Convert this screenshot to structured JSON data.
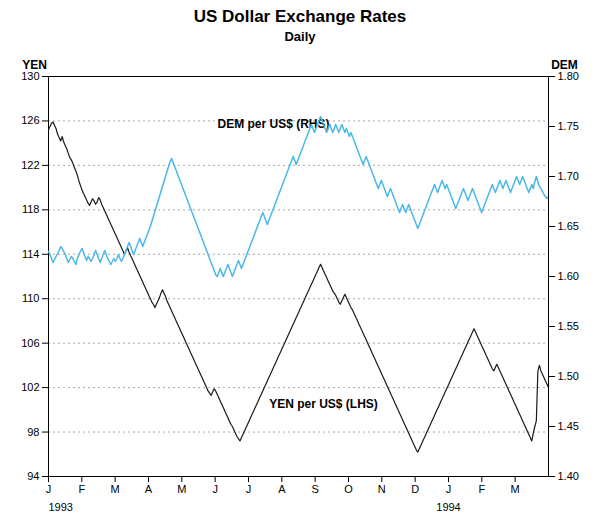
{
  "chart_data": {
    "type": "line",
    "title": "US Dollar Exchange Rates",
    "subtitle": "Daily",
    "ylabel": "YEN",
    "y2label": "DEM",
    "grid": true,
    "xlim": [
      0,
      15
    ],
    "xticks": [
      {
        "value": 0,
        "label": "J"
      },
      {
        "value": 1,
        "label": "F"
      },
      {
        "value": 2,
        "label": "M"
      },
      {
        "value": 3,
        "label": "A"
      },
      {
        "value": 4,
        "label": "M"
      },
      {
        "value": 5,
        "label": "J"
      },
      {
        "value": 6,
        "label": "J"
      },
      {
        "value": 7,
        "label": "A"
      },
      {
        "value": 8,
        "label": "S"
      },
      {
        "value": 9,
        "label": "O"
      },
      {
        "value": 10,
        "label": "N"
      },
      {
        "value": 11,
        "label": "D"
      },
      {
        "value": 12,
        "label": "J"
      },
      {
        "value": 13,
        "label": "F"
      },
      {
        "value": 14,
        "label": "M"
      }
    ],
    "x_year_labels": [
      {
        "value": 0,
        "label": "1993"
      },
      {
        "value": 12,
        "label": "1994"
      }
    ],
    "ylim": [
      94,
      130
    ],
    "yticks": [
      94,
      98,
      102,
      106,
      110,
      114,
      118,
      122,
      126,
      130
    ],
    "y2lim": [
      1.4,
      1.8
    ],
    "y2ticks": [
      {
        "value": 1.4,
        "label": "1.40"
      },
      1.45,
      {
        "value": 1.5,
        "label": "1.50"
      },
      1.55,
      {
        "value": 1.6,
        "label": "1.60"
      },
      1.65,
      {
        "value": 1.7,
        "label": "1.70"
      },
      1.75,
      {
        "value": 1.8,
        "label": "1.80"
      }
    ],
    "annotations": [
      {
        "text": "DEM per US$ (RHS)"
      },
      {
        "text": "YEN per US$ (LHS)"
      }
    ],
    "x": [
      0,
      0.0456,
      0.0912,
      0.1368,
      0.1824,
      0.228,
      0.2736,
      0.3191,
      0.3647,
      0.4103,
      0.4559,
      0.5015,
      0.5471,
      0.5927,
      0.6383,
      0.6839,
      0.7295,
      0.7751,
      0.8207,
      0.8663,
      0.9119,
      0.9574,
      1.003,
      1.0486,
      1.0942,
      1.1398,
      1.1854,
      1.231,
      1.2766,
      1.3222,
      1.3678,
      1.4134,
      1.459,
      1.5046,
      1.5502,
      1.5957,
      1.6413,
      1.6869,
      1.7325,
      1.7781,
      1.8237,
      1.8693,
      1.9149,
      1.9605,
      2.0061,
      2.0517,
      2.0973,
      2.1429,
      2.1884,
      2.234,
      2.2796,
      2.3252,
      2.3708,
      2.4164,
      2.462,
      2.5076,
      2.5532,
      2.5988,
      2.6444,
      2.69,
      2.7356,
      2.7812,
      2.8267,
      2.8723,
      2.9179,
      2.9635,
      3.0091,
      3.0547,
      3.1003,
      3.1459,
      3.1915,
      3.2371,
      3.2827,
      3.3283,
      3.3739,
      3.4195,
      3.465,
      3.5106,
      3.5562,
      3.6018,
      3.6474,
      3.693,
      3.7386,
      3.7842,
      3.8298,
      3.8754,
      3.921,
      3.9666,
      4.0122,
      4.0578,
      4.1033,
      4.1489,
      4.1945,
      4.2401,
      4.2857,
      4.3313,
      4.3769,
      4.4225,
      4.4681,
      4.5137,
      4.5593,
      4.6049,
      4.6505,
      4.696,
      4.7416,
      4.7872,
      4.8328,
      4.8784,
      4.924,
      4.9696,
      5.0152,
      5.0608,
      5.1064,
      5.152,
      5.1976,
      5.2432,
      5.2888,
      5.3343,
      5.3799,
      5.4255,
      5.4711,
      5.5167,
      5.5623,
      5.6079,
      5.6535,
      5.6991,
      5.7447,
      5.7903,
      5.8359,
      5.8815,
      5.9271,
      5.9726,
      6.0182,
      6.0638,
      6.1094,
      6.155,
      6.2006,
      6.2462,
      6.2918,
      6.3374,
      6.383,
      6.4286,
      6.4742,
      6.5198,
      6.5653,
      6.6109,
      6.6565,
      6.7021,
      6.7477,
      6.7933,
      6.8389,
      6.8845,
      6.9301,
      6.9757,
      7.0213,
      7.0669,
      7.1125,
      7.1581,
      7.2036,
      7.2492,
      7.2948,
      7.3404,
      7.386,
      7.4316,
      7.4772,
      7.5228,
      7.5684,
      7.614,
      7.6596,
      7.7052,
      7.7508,
      7.7964,
      7.8419,
      7.8875,
      7.9331,
      7.9787,
      8.0243,
      8.0699,
      8.1155,
      8.1611,
      8.2067,
      8.2523,
      8.2979,
      8.3435,
      8.3891,
      8.4347,
      8.4802,
      8.5258,
      8.5714,
      8.617,
      8.6626,
      8.7082,
      8.7538,
      8.7994,
      8.845,
      8.8906,
      8.9362,
      8.9818,
      9.0274,
      9.0729,
      9.1185,
      9.1641,
      9.2097,
      9.2553,
      9.3009,
      9.3465,
      9.3921,
      9.4377,
      9.4833,
      9.5289,
      9.5745,
      9.6201,
      9.6657,
      9.7112,
      9.7568,
      9.8024,
      9.848,
      9.8936,
      9.9392,
      9.9848,
      10.0304,
      10.076,
      10.1216,
      10.1672,
      10.2128,
      10.2584,
      10.304,
      10.3495,
      10.3951,
      10.4407,
      10.4863,
      10.5319,
      10.5775,
      10.6231,
      10.6687,
      10.7143,
      10.7599,
      10.8055,
      10.8511,
      10.8967,
      10.9422,
      10.9878,
      11.0334,
      11.079,
      11.1246,
      11.1702,
      11.2158,
      11.2614,
      11.307,
      11.3526,
      11.3982,
      11.4438,
      11.4894,
      11.535,
      11.5805,
      11.6261,
      11.6717,
      11.7173,
      11.7629,
      11.8085,
      11.8541,
      11.8997,
      11.9453,
      11.9909,
      12.0365,
      12.0821,
      12.1277,
      12.1733,
      12.2188,
      12.2644,
      12.31,
      12.3556,
      12.4012,
      12.4468,
      12.4924,
      12.538,
      12.5836,
      12.6292,
      12.6748,
      12.7204,
      12.766,
      12.8116,
      12.8571,
      12.9027,
      12.9483,
      12.9939,
      13.0395,
      13.0851,
      13.1307,
      13.1763,
      13.2219,
      13.2675,
      13.3131,
      13.3587,
      13.4043,
      13.4498,
      13.4954,
      13.541,
      13.5866,
      13.6322,
      13.6778,
      13.7234,
      13.769,
      13.8146,
      13.8602,
      13.9058,
      13.9514,
      13.997,
      14.0426,
      14.0881,
      14.1337,
      14.1793,
      14.2249,
      14.2705,
      14.3161,
      14.3617,
      14.4073,
      14.4529,
      14.4985,
      14.5441,
      14.5897,
      14.6353,
      14.6809,
      14.7264,
      14.772,
      14.8176,
      14.8632,
      14.9088,
      14.9544,
      15
    ],
    "series": [
      {
        "color": "#1a1a1a",
        "values": [
          125.2,
          125.5,
          125.8,
          125.9,
          125.6,
          125.3,
          124.8,
          124.5,
          124.2,
          124.6,
          124.1,
          123.8,
          123.5,
          123.1,
          122.7,
          122.5,
          122.2,
          121.8,
          121.5,
          121.1,
          120.6,
          120.2,
          119.8,
          119.5,
          119.2,
          118.9,
          118.6,
          118.4,
          118.7,
          119.0,
          118.8,
          118.5,
          118.7,
          119.1,
          118.9,
          118.5,
          118.2,
          117.9,
          117.6,
          117.3,
          117.0,
          116.7,
          116.4,
          116.1,
          115.8,
          115.5,
          115.2,
          114.9,
          114.6,
          114.3,
          114.0,
          114.3,
          114.6,
          114.2,
          113.9,
          113.6,
          113.3,
          113.0,
          112.7,
          112.4,
          112.1,
          111.8,
          111.5,
          111.2,
          110.9,
          110.6,
          110.3,
          110.0,
          109.7,
          109.5,
          109.2,
          109.5,
          109.8,
          110.1,
          110.5,
          110.8,
          110.5,
          110.2,
          109.8,
          109.5,
          109.2,
          108.9,
          108.6,
          108.3,
          108.0,
          107.7,
          107.4,
          107.1,
          106.8,
          106.5,
          106.2,
          105.9,
          105.6,
          105.3,
          105.0,
          104.7,
          104.4,
          104.1,
          103.8,
          103.5,
          103.2,
          102.9,
          102.6,
          102.3,
          102.0,
          101.7,
          101.5,
          101.3,
          101.6,
          101.9,
          101.7,
          101.4,
          101.1,
          100.8,
          100.5,
          100.2,
          99.9,
          99.6,
          99.3,
          99.0,
          98.7,
          98.5,
          98.2,
          97.9,
          97.6,
          97.4,
          97.2,
          97.5,
          97.8,
          98.1,
          98.4,
          98.7,
          99.0,
          99.3,
          99.6,
          99.9,
          100.2,
          100.5,
          100.8,
          101.1,
          101.4,
          101.7,
          102.0,
          102.3,
          102.6,
          102.9,
          103.2,
          103.5,
          103.8,
          104.1,
          104.4,
          104.7,
          105.0,
          105.3,
          105.6,
          105.9,
          106.2,
          106.5,
          106.8,
          107.1,
          107.4,
          107.7,
          108.0,
          108.3,
          108.6,
          108.9,
          109.2,
          109.5,
          109.8,
          110.1,
          110.4,
          110.7,
          111.0,
          111.3,
          111.6,
          111.9,
          112.2,
          112.5,
          112.8,
          113.1,
          112.8,
          112.5,
          112.2,
          111.9,
          111.6,
          111.3,
          111.0,
          110.7,
          110.5,
          110.3,
          110.0,
          109.7,
          109.5,
          109.8,
          110.1,
          110.4,
          110.1,
          109.8,
          109.5,
          109.2,
          109.0,
          108.7,
          108.4,
          108.1,
          107.8,
          107.5,
          107.2,
          106.9,
          106.6,
          106.3,
          106.0,
          105.7,
          105.4,
          105.1,
          104.8,
          104.5,
          104.2,
          103.9,
          103.6,
          103.3,
          103.0,
          102.7,
          102.4,
          102.1,
          101.8,
          101.5,
          101.2,
          100.9,
          100.6,
          100.3,
          100.0,
          99.7,
          99.4,
          99.1,
          98.8,
          98.5,
          98.2,
          97.9,
          97.6,
          97.3,
          97.0,
          96.7,
          96.4,
          96.2,
          96.5,
          96.8,
          97.1,
          97.4,
          97.7,
          98.0,
          98.3,
          98.6,
          98.9,
          99.2,
          99.5,
          99.8,
          100.1,
          100.4,
          100.7,
          101.0,
          101.3,
          101.6,
          101.9,
          102.2,
          102.5,
          102.8,
          103.1,
          103.4,
          103.7,
          104.0,
          104.3,
          104.6,
          104.9,
          105.2,
          105.5,
          105.8,
          106.1,
          106.4,
          106.7,
          107.0,
          107.3,
          107.0,
          106.7,
          106.4,
          106.1,
          105.8,
          105.5,
          105.2,
          104.9,
          104.6,
          104.3,
          104.0,
          103.7,
          103.5,
          103.8,
          104.1,
          103.8,
          103.5,
          103.2,
          102.9,
          102.6,
          102.3,
          102.0,
          101.7,
          101.4,
          101.1,
          100.8,
          100.5,
          100.2,
          99.9,
          99.6,
          99.3,
          99.0,
          98.7,
          98.4,
          98.1,
          97.8,
          97.5,
          97.2,
          97.9,
          98.5,
          99.0,
          103.5,
          104.0,
          103.5,
          103.2,
          102.9,
          102.6,
          102.3,
          102.0
        ]
      },
      {
        "color": "#4ab8e8",
        "axis": "y2",
        "values": [
          1.625,
          1.622,
          1.618,
          1.614,
          1.617,
          1.62,
          1.623,
          1.626,
          1.63,
          1.628,
          1.625,
          1.622,
          1.618,
          1.614,
          1.617,
          1.62,
          1.618,
          1.615,
          1.612,
          1.618,
          1.622,
          1.625,
          1.628,
          1.624,
          1.62,
          1.616,
          1.62,
          1.618,
          1.615,
          1.618,
          1.622,
          1.626,
          1.622,
          1.618,
          1.614,
          1.618,
          1.622,
          1.626,
          1.622,
          1.618,
          1.615,
          1.612,
          1.615,
          1.618,
          1.615,
          1.618,
          1.622,
          1.618,
          1.615,
          1.618,
          1.622,
          1.626,
          1.63,
          1.634,
          1.63,
          1.626,
          1.622,
          1.626,
          1.63,
          1.634,
          1.638,
          1.634,
          1.63,
          1.634,
          1.638,
          1.642,
          1.646,
          1.65,
          1.655,
          1.66,
          1.665,
          1.67,
          1.675,
          1.68,
          1.685,
          1.69,
          1.695,
          1.7,
          1.705,
          1.71,
          1.715,
          1.718,
          1.714,
          1.71,
          1.706,
          1.702,
          1.698,
          1.694,
          1.69,
          1.686,
          1.682,
          1.678,
          1.674,
          1.67,
          1.666,
          1.662,
          1.658,
          1.654,
          1.65,
          1.646,
          1.642,
          1.638,
          1.634,
          1.63,
          1.626,
          1.622,
          1.618,
          1.614,
          1.61,
          1.606,
          1.602,
          1.6,
          1.604,
          1.608,
          1.604,
          1.6,
          1.604,
          1.608,
          1.612,
          1.608,
          1.604,
          1.6,
          1.604,
          1.608,
          1.612,
          1.616,
          1.612,
          1.608,
          1.612,
          1.616,
          1.62,
          1.624,
          1.628,
          1.632,
          1.636,
          1.64,
          1.644,
          1.648,
          1.652,
          1.656,
          1.66,
          1.664,
          1.66,
          1.656,
          1.652,
          1.656,
          1.66,
          1.664,
          1.668,
          1.672,
          1.676,
          1.68,
          1.684,
          1.688,
          1.692,
          1.696,
          1.7,
          1.704,
          1.708,
          1.712,
          1.716,
          1.72,
          1.716,
          1.712,
          1.716,
          1.72,
          1.724,
          1.728,
          1.732,
          1.736,
          1.74,
          1.744,
          1.748,
          1.752,
          1.748,
          1.744,
          1.748,
          1.752,
          1.756,
          1.76,
          1.756,
          1.752,
          1.748,
          1.744,
          1.748,
          1.752,
          1.748,
          1.744,
          1.748,
          1.752,
          1.748,
          1.744,
          1.748,
          1.752,
          1.748,
          1.744,
          1.748,
          1.744,
          1.74,
          1.744,
          1.74,
          1.736,
          1.732,
          1.728,
          1.724,
          1.72,
          1.716,
          1.712,
          1.716,
          1.72,
          1.716,
          1.712,
          1.708,
          1.704,
          1.7,
          1.696,
          1.692,
          1.688,
          1.692,
          1.696,
          1.692,
          1.688,
          1.684,
          1.68,
          1.684,
          1.688,
          1.684,
          1.68,
          1.676,
          1.672,
          1.668,
          1.664,
          1.668,
          1.672,
          1.668,
          1.664,
          1.668,
          1.672,
          1.668,
          1.664,
          1.66,
          1.656,
          1.652,
          1.648,
          1.652,
          1.656,
          1.66,
          1.664,
          1.668,
          1.672,
          1.676,
          1.68,
          1.684,
          1.688,
          1.692,
          1.688,
          1.684,
          1.688,
          1.692,
          1.696,
          1.692,
          1.688,
          1.692,
          1.688,
          1.684,
          1.68,
          1.676,
          1.672,
          1.668,
          1.672,
          1.676,
          1.68,
          1.684,
          1.688,
          1.684,
          1.68,
          1.676,
          1.68,
          1.684,
          1.688,
          1.684,
          1.68,
          1.676,
          1.672,
          1.668,
          1.664,
          1.668,
          1.672,
          1.676,
          1.68,
          1.684,
          1.688,
          1.692,
          1.688,
          1.684,
          1.688,
          1.692,
          1.696,
          1.692,
          1.688,
          1.692,
          1.696,
          1.692,
          1.688,
          1.684,
          1.688,
          1.692,
          1.696,
          1.7,
          1.696,
          1.692,
          1.696,
          1.7,
          1.696,
          1.692,
          1.688,
          1.684,
          1.688,
          1.692,
          1.688,
          1.695,
          1.7,
          1.695,
          1.69,
          1.688,
          1.685,
          1.682,
          1.68,
          1.678,
          1.68
        ]
      }
    ]
  }
}
